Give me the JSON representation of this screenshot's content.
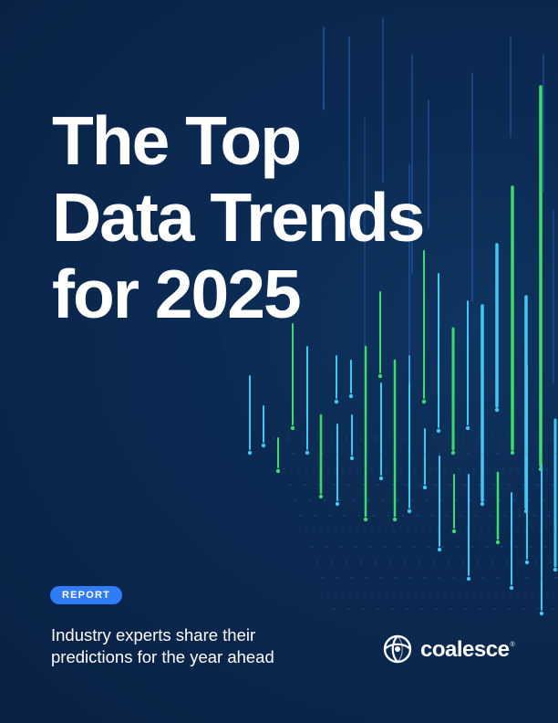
{
  "cover": {
    "title_lines": [
      "The Top",
      "Data Trends",
      "for 2025"
    ],
    "badge": "REPORT",
    "subtitle_lines": [
      "Industry experts share their",
      "predictions for the year ahead"
    ],
    "brand": "coalesce",
    "brand_mark": "®"
  },
  "colors": {
    "background": "#0b2447",
    "accent_blue": "#2f7cf6",
    "line_cyan": "#3ec9f2",
    "line_green": "#3ddc6a",
    "text": "#ffffff"
  },
  "icons": [
    "coalesce-logo-icon"
  ]
}
